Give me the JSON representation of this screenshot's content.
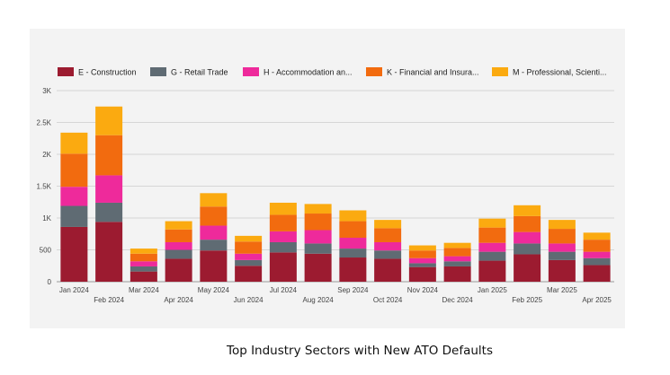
{
  "caption": "Top Industry Sectors with New ATO Defaults",
  "chart_data": {
    "type": "bar",
    "stacked": true,
    "categories": [
      "Jan 2024",
      "Feb 2024",
      "Mar 2024",
      "Apr 2024",
      "May 2024",
      "Jun 2024",
      "Jul 2024",
      "Aug 2024",
      "Sep 2024",
      "Oct 2024",
      "Nov 2024",
      "Dec 2024",
      "Jan 2025",
      "Feb 2025",
      "Mar 2025",
      "Apr 2025"
    ],
    "ylim": [
      0,
      3000
    ],
    "yticks": [
      0,
      500,
      1000,
      1500,
      2000,
      2500,
      3000
    ],
    "yticklabels": [
      "0",
      "500",
      "1K",
      "1.5K",
      "2K",
      "2.5K",
      "3K"
    ],
    "grid": true,
    "legend_position": "top",
    "series": [
      {
        "name": "E - Construction",
        "color": "#9c1b30",
        "values": [
          860,
          940,
          160,
          360,
          490,
          250,
          460,
          440,
          380,
          360,
          230,
          240,
          330,
          430,
          340,
          260
        ]
      },
      {
        "name": "G - Retail Trade",
        "color": "#5f6b73",
        "values": [
          330,
          300,
          80,
          140,
          170,
          90,
          160,
          160,
          140,
          130,
          60,
          80,
          140,
          170,
          130,
          110
        ]
      },
      {
        "name": "H - Accommodation an...",
        "color": "#ee2a9b",
        "values": [
          300,
          430,
          80,
          120,
          220,
          100,
          170,
          210,
          170,
          130,
          80,
          80,
          140,
          180,
          130,
          100
        ]
      },
      {
        "name": "K - Financial and Insura...",
        "color": "#f26b0f",
        "values": [
          520,
          630,
          120,
          200,
          300,
          190,
          260,
          260,
          260,
          220,
          120,
          130,
          240,
          250,
          230,
          190
        ]
      },
      {
        "name": "M - Professional, Scienti...",
        "color": "#fbaa10",
        "values": [
          330,
          450,
          80,
          130,
          210,
          90,
          190,
          150,
          170,
          130,
          80,
          80,
          140,
          170,
          140,
          110
        ]
      }
    ]
  }
}
